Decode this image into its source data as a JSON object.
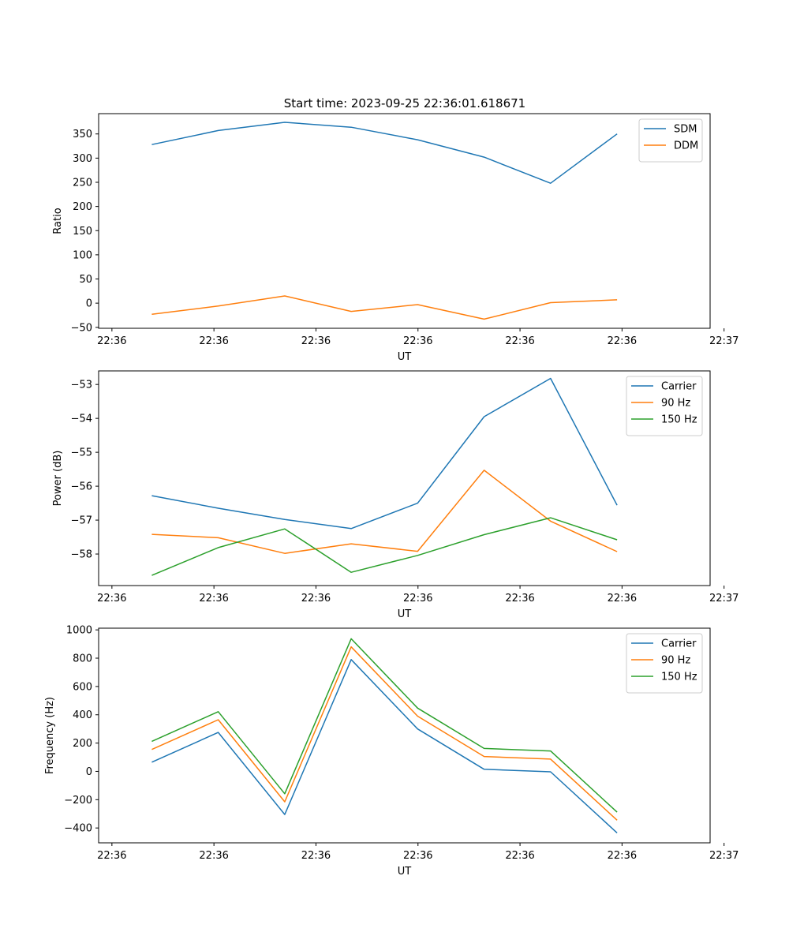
{
  "figure": {
    "title": "Start time: 2023-09-25 22:36:01.618671"
  },
  "chart_data": [
    {
      "type": "line",
      "title": "Start time: 2023-09-25 22:36:01.618671",
      "xlabel": "UT",
      "ylabel": "Ratio",
      "x": [
        1,
        2,
        3,
        4,
        5,
        6,
        7,
        8
      ],
      "xlim": [
        0.2,
        9.4
      ],
      "ylim": [
        -52,
        392
      ],
      "x_ticks": [
        {
          "value": 0.4,
          "label": "22:36"
        },
        {
          "value": 1.935,
          "label": "22:36"
        },
        {
          "value": 3.47,
          "label": "22:36"
        },
        {
          "value": 5.005,
          "label": "22:36"
        },
        {
          "value": 6.54,
          "label": "22:36"
        },
        {
          "value": 8.075,
          "label": "22:36"
        },
        {
          "value": 9.61,
          "label": "22:37"
        }
      ],
      "y_ticks": [
        -50,
        0,
        50,
        100,
        150,
        200,
        250,
        300,
        350
      ],
      "legend_position": "top-right",
      "series": [
        {
          "name": "SDM",
          "color": "#1f77b4",
          "values": [
            328,
            357,
            374,
            364,
            338,
            302,
            248,
            350
          ]
        },
        {
          "name": "DDM",
          "color": "#ff7f0e",
          "values": [
            -23,
            -6,
            15,
            -17,
            -3,
            -33,
            1,
            7
          ]
        }
      ]
    },
    {
      "type": "line",
      "title": "",
      "xlabel": "UT",
      "ylabel": "Power (dB)",
      "x": [
        1,
        2,
        3,
        4,
        5,
        6,
        7,
        8
      ],
      "xlim": [
        0.2,
        9.4
      ],
      "ylim": [
        -58.93,
        -52.6
      ],
      "x_ticks": [
        {
          "value": 0.4,
          "label": "22:36"
        },
        {
          "value": 1.935,
          "label": "22:36"
        },
        {
          "value": 3.47,
          "label": "22:36"
        },
        {
          "value": 5.005,
          "label": "22:36"
        },
        {
          "value": 6.54,
          "label": "22:36"
        },
        {
          "value": 8.075,
          "label": "22:36"
        },
        {
          "value": 9.61,
          "label": "22:37"
        }
      ],
      "y_ticks": [
        -58,
        -57,
        -56,
        -55,
        -54,
        -53
      ],
      "legend_position": "top-right",
      "series": [
        {
          "name": "Carrier",
          "color": "#1f77b4",
          "values": [
            -56.28,
            -56.65,
            -56.98,
            -57.25,
            -56.5,
            -53.95,
            -52.82,
            -56.56
          ]
        },
        {
          "name": "90 Hz",
          "color": "#ff7f0e",
          "values": [
            -57.42,
            -57.52,
            -57.98,
            -57.7,
            -57.92,
            -55.53,
            -57.03,
            -57.93
          ]
        },
        {
          "name": "150 Hz",
          "color": "#2ca02c",
          "values": [
            -58.63,
            -57.81,
            -57.26,
            -58.54,
            -58.04,
            -57.43,
            -56.93,
            -57.58
          ]
        }
      ]
    },
    {
      "type": "line",
      "title": "",
      "xlabel": "UT",
      "ylabel": "Frequency (Hz)",
      "x": [
        1,
        2,
        3,
        4,
        5,
        6,
        7,
        8
      ],
      "xlim": [
        0.2,
        9.4
      ],
      "ylim": [
        -505,
        1012
      ],
      "x_ticks": [
        {
          "value": 0.4,
          "label": "22:36"
        },
        {
          "value": 1.935,
          "label": "22:36"
        },
        {
          "value": 3.47,
          "label": "22:36"
        },
        {
          "value": 5.005,
          "label": "22:36"
        },
        {
          "value": 6.54,
          "label": "22:36"
        },
        {
          "value": 8.075,
          "label": "22:36"
        },
        {
          "value": 9.61,
          "label": "22:37"
        }
      ],
      "y_ticks": [
        -400,
        -200,
        0,
        200,
        400,
        600,
        800,
        1000
      ],
      "legend_position": "top-right",
      "series": [
        {
          "name": "Carrier",
          "color": "#1f77b4",
          "values": [
            65,
            275,
            -305,
            790,
            300,
            15,
            -3,
            -435
          ]
        },
        {
          "name": "90 Hz",
          "color": "#ff7f0e",
          "values": [
            155,
            365,
            -215,
            880,
            390,
            105,
            87,
            -345
          ]
        },
        {
          "name": "150 Hz",
          "color": "#2ca02c",
          "values": [
            212,
            422,
            -158,
            937,
            447,
            162,
            144,
            -288
          ]
        }
      ]
    }
  ]
}
